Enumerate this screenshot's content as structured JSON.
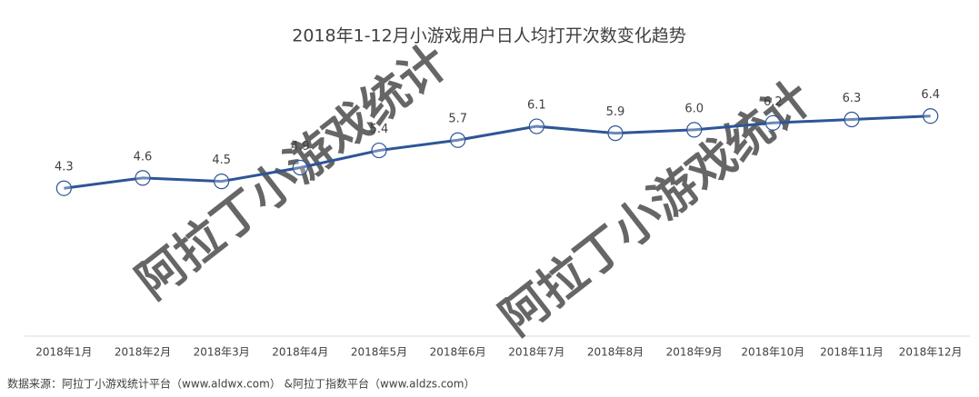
{
  "chart_data": {
    "type": "line",
    "title": "2018年1-12月小游戏用户日人均打开次数变化趋势",
    "categories": [
      "2018年1月",
      "2018年2月",
      "2018年3月",
      "2018年4月",
      "2018年5月",
      "2018年6月",
      "2018年7月",
      "2018年8月",
      "2018年9月",
      "2018年10月",
      "2018年11月",
      "2018年12月"
    ],
    "values": [
      4.3,
      4.6,
      4.5,
      4.9,
      5.4,
      5.7,
      6.1,
      5.9,
      6.0,
      6.2,
      6.3,
      6.4
    ],
    "value_labels": [
      "4.3",
      "4.6",
      "4.5",
      "4.9",
      "5.4",
      "5.7",
      "6.1",
      "5.9",
      "6.0",
      "6.2",
      "6.3",
      "6.4"
    ],
    "color": "#2e5597",
    "ylim": [
      0,
      7
    ],
    "grid": false,
    "watermark": "阿拉丁小游戏统计",
    "source": "数据来源：阿拉丁小游戏统计平台（www.aldwx.com） &阿拉丁指数平台（www.aldzs.com）"
  }
}
